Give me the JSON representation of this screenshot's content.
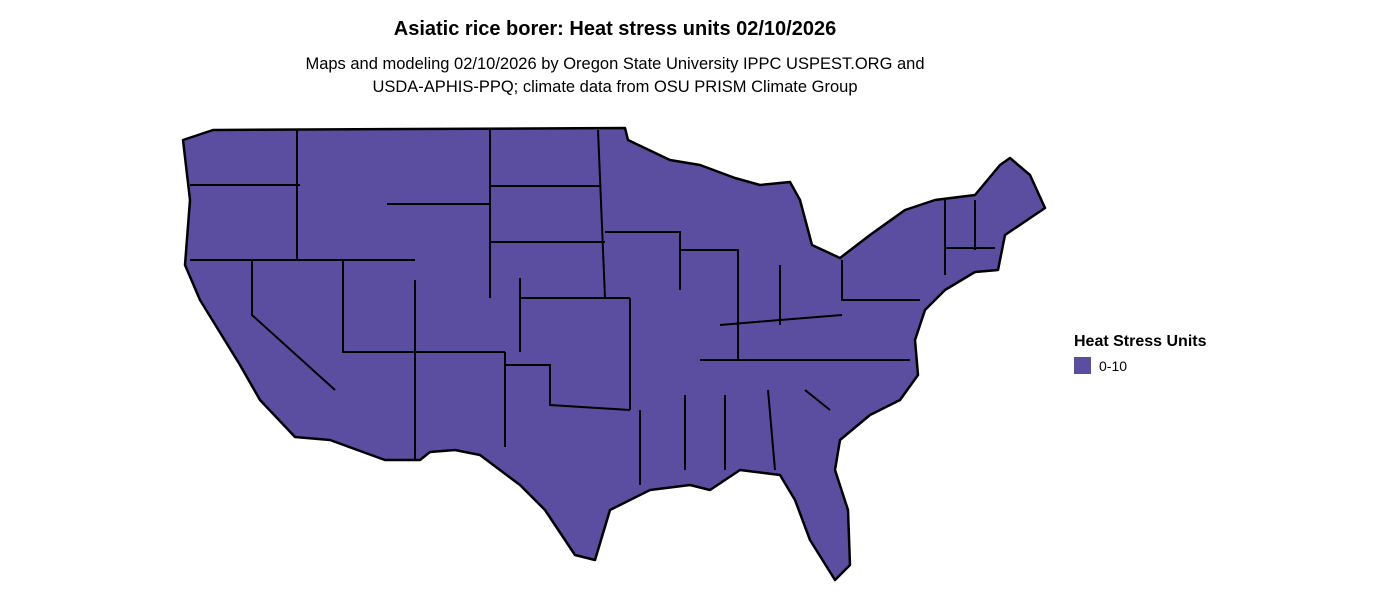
{
  "title": "Asiatic rice borer: Heat stress units 02/10/2026",
  "subtitle_line1": "Maps and modeling 02/10/2026 by Oregon State University IPPC USPEST.ORG and",
  "subtitle_line2": "USDA-APHIS-PPQ; climate data from OSU PRISM Climate Group",
  "legend": {
    "title": "Heat Stress Units",
    "items": [
      {
        "label": "0-10",
        "color": "#5b4ea0"
      }
    ]
  },
  "map": {
    "region": "Contiguous United States",
    "fill_color": "#5b4ea0",
    "border_color": "#000000"
  }
}
